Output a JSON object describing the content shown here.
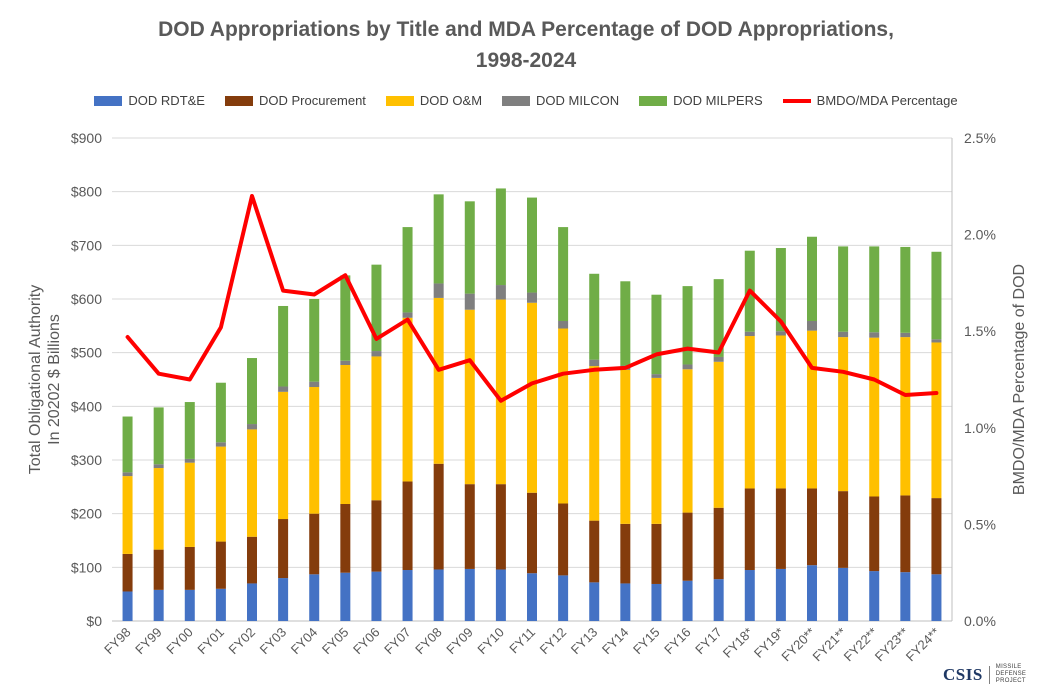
{
  "chart_data": {
    "type": "bar",
    "stacked": true,
    "title": "DOD Appropriations by Title and MDA Percentage of DOD Appropriations,",
    "title_line2": "1998-2024",
    "ylabel_left_line1": "Total Obligational Authority",
    "ylabel_left_line2": "In 20202 $ Billions",
    "ylabel_right": "BMDO/MDA Percentage of DOD",
    "ylim": [
      0,
      900
    ],
    "ylim_right": [
      0,
      2.5
    ],
    "yticks": [
      "$0",
      "$100",
      "$200",
      "$300",
      "$400",
      "$500",
      "$600",
      "$700",
      "$800",
      "$900"
    ],
    "yticks_right": [
      "0.0%",
      "0.5%",
      "1.0%",
      "1.5%",
      "2.0%",
      "2.5%"
    ],
    "legend_position": "top",
    "gridlines": true,
    "categories": [
      "FY98",
      "FY99",
      "FY00",
      "FY01",
      "FY02",
      "FY03",
      "FY04",
      "FY05",
      "FY06",
      "FY07",
      "FY08",
      "FY09",
      "FY10",
      "FY11",
      "FY12",
      "FY13",
      "FY14",
      "FY15",
      "FY16",
      "FY17",
      "FY18*",
      "FY19*",
      "FY20**",
      "FY21**",
      "FY22**",
      "FY23**",
      "FY24**"
    ],
    "series": [
      {
        "name": "DOD RDT&E",
        "color": "#4472c4",
        "values": [
          55,
          58,
          58,
          60,
          70,
          80,
          87,
          90,
          92,
          95,
          96,
          97,
          96,
          89,
          85,
          72,
          70,
          69,
          75,
          78,
          95,
          97,
          104,
          99,
          93,
          91,
          87
        ]
      },
      {
        "name": "DOD Procurement",
        "color": "#843c0c",
        "values": [
          70,
          75,
          80,
          88,
          87,
          110,
          113,
          128,
          133,
          165,
          197,
          158,
          159,
          150,
          134,
          115,
          111,
          112,
          127,
          133,
          152,
          150,
          143,
          143,
          139,
          143,
          142
        ]
      },
      {
        "name": "DOD O&M",
        "color": "#ffc000",
        "values": [
          145,
          152,
          157,
          177,
          200,
          237,
          236,
          259,
          268,
          305,
          309,
          325,
          344,
          354,
          326,
          288,
          287,
          272,
          267,
          272,
          284,
          285,
          294,
          287,
          296,
          295,
          290
        ]
      },
      {
        "name": "DOD MILCON",
        "color": "#7f7f7f",
        "values": [
          7,
          7,
          7,
          8,
          10,
          10,
          10,
          8,
          10,
          10,
          27,
          30,
          27,
          19,
          14,
          12,
          8,
          7,
          9,
          9,
          8,
          8,
          18,
          10,
          10,
          8,
          6
        ]
      },
      {
        "name": "DOD MILPERS",
        "color": "#70ad47",
        "values": [
          104,
          106,
          106,
          111,
          123,
          150,
          154,
          159,
          161,
          159,
          166,
          172,
          180,
          177,
          175,
          160,
          157,
          148,
          146,
          145,
          151,
          155,
          157,
          159,
          160,
          160,
          163
        ]
      }
    ],
    "line_series": {
      "name": "BMDO/MDA Percentage",
      "color": "#ff0000",
      "axis": "right",
      "values": [
        1.47,
        1.28,
        1.25,
        1.52,
        2.2,
        1.71,
        1.69,
        1.79,
        1.46,
        1.56,
        1.3,
        1.35,
        1.14,
        1.23,
        1.28,
        1.3,
        1.31,
        1.38,
        1.41,
        1.39,
        1.71,
        1.55,
        1.31,
        1.29,
        1.25,
        1.17,
        1.18
      ]
    }
  },
  "logo": {
    "word": "CSIS",
    "line1": "MISSILE DEFENSE",
    "line2": "PROJECT"
  }
}
